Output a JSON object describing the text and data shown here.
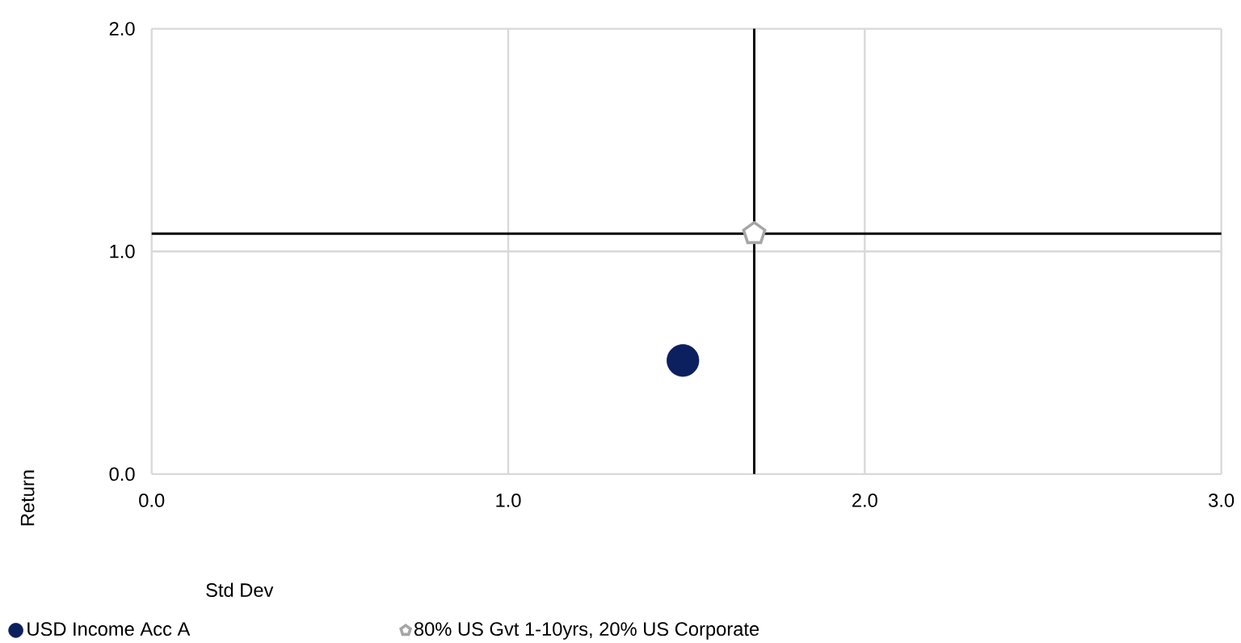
{
  "chart_data": {
    "type": "scatter",
    "xlabel": "Std Dev",
    "ylabel": "Return",
    "xlim": [
      0,
      3
    ],
    "xticks": [
      {
        "value": 0,
        "label": "0.0"
      },
      {
        "value": 1,
        "label": "1.0"
      },
      {
        "value": 2,
        "label": "2.0"
      },
      {
        "value": 3,
        "label": "3.0"
      }
    ],
    "ylim": [
      0,
      2
    ],
    "yticks": [
      {
        "value": 0,
        "label": "0.0"
      },
      {
        "value": 1,
        "label": "1.0"
      },
      {
        "value": 2,
        "label": "2.0"
      }
    ],
    "grid": true,
    "legend": "bottom",
    "ref_lines": [
      {
        "axis": "x",
        "value": 1.69,
        "color": "#000000"
      },
      {
        "axis": "y",
        "value": 1.08,
        "color": "#000000"
      }
    ],
    "series": [
      {
        "name": "USD Income Acc A",
        "color": "#0c1f5e",
        "marker": "circle",
        "x": [
          1.49
        ],
        "values": [
          0.51
        ]
      },
      {
        "name": "80% US Gvt 1-10yrs, 20% US Corporate",
        "color": "#a6a6a6",
        "x": [
          1.69
        ],
        "values": [
          1.08
        ]
      }
    ]
  }
}
